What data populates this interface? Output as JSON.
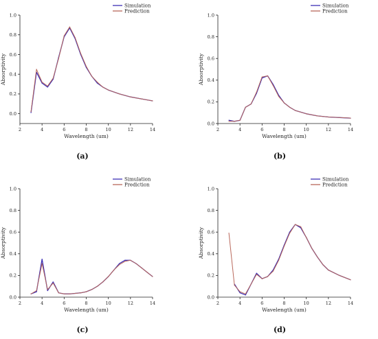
{
  "figure": {
    "captions": [
      "(a)",
      "(b)",
      "(c)",
      "(d)"
    ]
  },
  "colors": {
    "simulation": "#3b2fb5",
    "prediction": "#b8675a",
    "axis": "#222222"
  },
  "chart_data": [
    {
      "type": "line",
      "panel": "(a)",
      "xlabel": "Wavelength (um)",
      "ylabel": "Absorptivity",
      "xlim": [
        2,
        14
      ],
      "ylim": [
        -0.1,
        1.0
      ],
      "xticks": [
        2,
        4,
        6,
        8,
        10,
        12,
        14
      ],
      "yticks": [
        0.0,
        0.2,
        0.4,
        0.6,
        0.8,
        1.0
      ],
      "ytick_labels": [
        "0.0",
        "0.2",
        "0.4",
        "0.6",
        "0.8",
        "1.0"
      ],
      "legend_position": "top-right",
      "series": [
        {
          "name": "Simulation",
          "x": [
            3.0,
            3.5,
            4.0,
            4.5,
            5.0,
            5.5,
            6.0,
            6.5,
            7.0,
            7.5,
            8.0,
            8.5,
            9.0,
            9.5,
            10.0,
            11.0,
            12.0,
            13.0,
            14.0
          ],
          "y": [
            0.01,
            0.42,
            0.31,
            0.27,
            0.35,
            0.57,
            0.78,
            0.87,
            0.76,
            0.6,
            0.47,
            0.38,
            0.31,
            0.27,
            0.24,
            0.2,
            0.17,
            0.15,
            0.13
          ]
        },
        {
          "name": "Prediction",
          "x": [
            3.0,
            3.5,
            4.0,
            4.5,
            5.0,
            5.5,
            6.0,
            6.5,
            7.0,
            7.5,
            8.0,
            8.5,
            9.0,
            9.5,
            10.0,
            11.0,
            12.0,
            13.0,
            14.0
          ],
          "y": [
            0.02,
            0.45,
            0.32,
            0.28,
            0.36,
            0.56,
            0.79,
            0.88,
            0.77,
            0.61,
            0.48,
            0.38,
            0.32,
            0.27,
            0.24,
            0.2,
            0.17,
            0.15,
            0.13
          ]
        }
      ]
    },
    {
      "type": "line",
      "panel": "(b)",
      "xlabel": "Wavelength (um)",
      "ylabel": "Absorptivity",
      "xlim": [
        2,
        14
      ],
      "ylim": [
        0.0,
        1.0
      ],
      "xticks": [
        2,
        4,
        6,
        8,
        10,
        12,
        14
      ],
      "yticks": [
        0.0,
        0.2,
        0.4,
        0.6,
        0.8,
        1.0
      ],
      "ytick_labels": [
        "0.0",
        "0.2",
        "0.4",
        "0.6",
        "0.8",
        "1.0"
      ],
      "legend_position": "top-right",
      "series": [
        {
          "name": "Simulation",
          "x": [
            3.0,
            3.5,
            4.0,
            4.5,
            5.0,
            5.5,
            6.0,
            6.5,
            7.0,
            7.5,
            8.0,
            8.5,
            9.0,
            10.0,
            11.0,
            12.0,
            13.0,
            14.0
          ],
          "y": [
            0.03,
            0.02,
            0.03,
            0.15,
            0.18,
            0.28,
            0.42,
            0.44,
            0.36,
            0.26,
            0.19,
            0.15,
            0.12,
            0.09,
            0.07,
            0.06,
            0.055,
            0.05
          ]
        },
        {
          "name": "Prediction",
          "x": [
            3.0,
            3.5,
            4.0,
            4.5,
            5.0,
            5.5,
            6.0,
            6.5,
            7.0,
            7.5,
            8.0,
            8.5,
            9.0,
            10.0,
            11.0,
            12.0,
            13.0,
            14.0
          ],
          "y": [
            0.02,
            0.02,
            0.03,
            0.15,
            0.18,
            0.29,
            0.43,
            0.44,
            0.35,
            0.25,
            0.19,
            0.15,
            0.12,
            0.09,
            0.07,
            0.06,
            0.055,
            0.05
          ]
        }
      ]
    },
    {
      "type": "line",
      "panel": "(c)",
      "xlabel": "Wavelength (um)",
      "ylabel": "Absorptivity",
      "xlim": [
        2,
        14
      ],
      "ylim": [
        0.0,
        1.0
      ],
      "xticks": [
        2,
        4,
        6,
        8,
        10,
        12,
        14
      ],
      "yticks": [
        0.0,
        0.2,
        0.4,
        0.6,
        0.8,
        1.0
      ],
      "ytick_labels": [
        "0.0",
        "0.2",
        "0.4",
        "0.6",
        "0.8",
        "1.0"
      ],
      "legend_position": "top-right",
      "series": [
        {
          "name": "Simulation",
          "x": [
            3.0,
            3.5,
            4.0,
            4.5,
            5.0,
            5.5,
            6.0,
            6.5,
            7.0,
            7.5,
            8.0,
            8.5,
            9.0,
            9.5,
            10.0,
            10.5,
            11.0,
            11.5,
            12.0,
            12.5,
            13.0,
            13.5,
            14.0
          ],
          "y": [
            0.03,
            0.05,
            0.35,
            0.06,
            0.14,
            0.04,
            0.03,
            0.03,
            0.035,
            0.04,
            0.05,
            0.07,
            0.1,
            0.14,
            0.19,
            0.25,
            0.31,
            0.34,
            0.34,
            0.31,
            0.27,
            0.23,
            0.19
          ]
        },
        {
          "name": "Prediction",
          "x": [
            3.0,
            3.5,
            4.0,
            4.5,
            5.0,
            5.5,
            6.0,
            6.5,
            7.0,
            7.5,
            8.0,
            8.5,
            9.0,
            9.5,
            10.0,
            10.5,
            11.0,
            11.5,
            12.0,
            12.5,
            13.0,
            13.5,
            14.0
          ],
          "y": [
            0.03,
            0.06,
            0.31,
            0.07,
            0.13,
            0.04,
            0.03,
            0.03,
            0.035,
            0.04,
            0.05,
            0.07,
            0.1,
            0.14,
            0.19,
            0.25,
            0.3,
            0.33,
            0.34,
            0.31,
            0.27,
            0.23,
            0.19
          ]
        }
      ]
    },
    {
      "type": "line",
      "panel": "(d)",
      "xlabel": "Wavelength (um)",
      "ylabel": "Absorptivity",
      "xlim": [
        2,
        14
      ],
      "ylim": [
        0.0,
        1.0
      ],
      "xticks": [
        2,
        4,
        6,
        8,
        10,
        12,
        14
      ],
      "yticks": [
        0.0,
        0.2,
        0.4,
        0.6,
        0.8,
        1.0
      ],
      "ytick_labels": [
        "0.0",
        "0.2",
        "0.4",
        "0.6",
        "0.8",
        "1.0"
      ],
      "legend_position": "top-right",
      "series": [
        {
          "name": "Simulation",
          "x": [
            3.5,
            4.0,
            4.5,
            5.0,
            5.5,
            6.0,
            6.5,
            7.0,
            7.5,
            8.0,
            8.5,
            9.0,
            9.5,
            10.0,
            10.5,
            11.0,
            11.5,
            12.0,
            13.0,
            14.0
          ],
          "y": [
            0.12,
            0.04,
            0.02,
            0.12,
            0.22,
            0.17,
            0.19,
            0.25,
            0.35,
            0.48,
            0.6,
            0.67,
            0.64,
            0.55,
            0.45,
            0.37,
            0.3,
            0.25,
            0.2,
            0.16
          ]
        },
        {
          "name": "Prediction",
          "x": [
            3.0,
            3.5,
            4.0,
            4.5,
            5.0,
            5.5,
            6.0,
            6.5,
            7.0,
            7.5,
            8.0,
            8.5,
            9.0,
            9.5,
            10.0,
            10.5,
            11.0,
            11.5,
            12.0,
            13.0,
            14.0
          ],
          "y": [
            0.59,
            0.11,
            0.05,
            0.03,
            0.12,
            0.21,
            0.17,
            0.19,
            0.24,
            0.34,
            0.47,
            0.59,
            0.67,
            0.65,
            0.55,
            0.45,
            0.37,
            0.3,
            0.25,
            0.2,
            0.16
          ]
        }
      ]
    }
  ]
}
